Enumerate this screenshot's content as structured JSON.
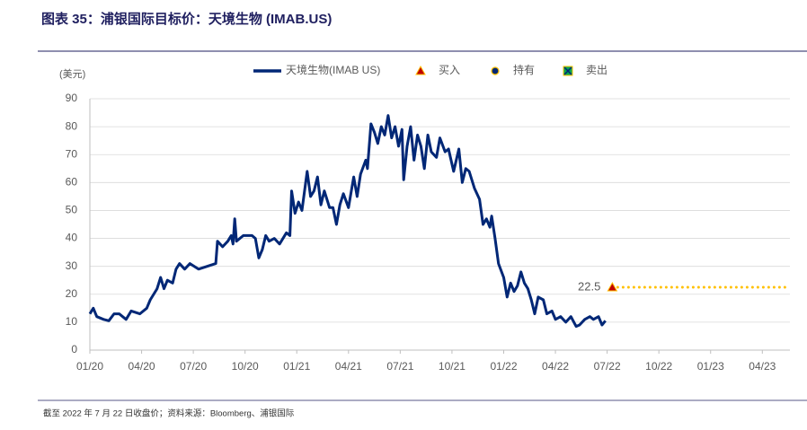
{
  "chart_data": {
    "type": "line",
    "title": "图表 35：浦银国际目标价：天境生物 (IMAB.US)",
    "y_label": "(美元)",
    "footnote": "截至 2022 年 7 月 22 日收盘价；资料来源：Bloomberg、浦银国际",
    "xlim": [
      0,
      40.6
    ],
    "xticks": [
      {
        "value": 0,
        "label": "01/20"
      },
      {
        "value": 3,
        "label": "04/20"
      },
      {
        "value": 6,
        "label": "07/20"
      },
      {
        "value": 9,
        "label": "10/20"
      },
      {
        "value": 12,
        "label": "01/21"
      },
      {
        "value": 15,
        "label": "04/21"
      },
      {
        "value": 18,
        "label": "07/21"
      },
      {
        "value": 21,
        "label": "10/21"
      },
      {
        "value": 24,
        "label": "01/22"
      },
      {
        "value": 27,
        "label": "04/22"
      },
      {
        "value": 30,
        "label": "07/22"
      },
      {
        "value": 33,
        "label": "10/22"
      },
      {
        "value": 36,
        "label": "01/23"
      },
      {
        "value": 39,
        "label": "04/23"
      }
    ],
    "ylim": [
      0,
      90
    ],
    "yticks": [
      0,
      10,
      20,
      30,
      40,
      50,
      60,
      70,
      80,
      90
    ],
    "grid": true,
    "series": [
      {
        "name": "天境生物(IMAB US)",
        "color": "#002776",
        "x": [
          0,
          0.2,
          0.4,
          0.8,
          1.1,
          1.4,
          1.7,
          2.1,
          2.4,
          2.9,
          3.3,
          3.5,
          3.9,
          4.1,
          4.3,
          4.5,
          4.8,
          5.0,
          5.2,
          5.5,
          5.8,
          6.3,
          6.8,
          7.3,
          7.4,
          7.7,
          8.0,
          8.2,
          8.3,
          8.4,
          8.5,
          8.9,
          9.4,
          9.6,
          9.8,
          10.0,
          10.2,
          10.4,
          10.7,
          11.0,
          11.4,
          11.6,
          11.7,
          11.9,
          12.1,
          12.3,
          12.6,
          12.8,
          13.0,
          13.2,
          13.4,
          13.6,
          13.9,
          14.1,
          14.3,
          14.5,
          14.7,
          15.0,
          15.3,
          15.5,
          15.7,
          16.0,
          16.1,
          16.3,
          16.5,
          16.7,
          16.9,
          17.1,
          17.3,
          17.5,
          17.7,
          17.9,
          18.1,
          18.2,
          18.4,
          18.6,
          18.8,
          19.0,
          19.2,
          19.4,
          19.6,
          19.8,
          20.1,
          20.3,
          20.6,
          20.8,
          21.1,
          21.4,
          21.6,
          21.8,
          22.0,
          22.3,
          22.6,
          22.8,
          23.0,
          23.2,
          23.3,
          23.5,
          23.7,
          24.0,
          24.2,
          24.4,
          24.6,
          24.8,
          25.0,
          25.2,
          25.4,
          25.6,
          25.8,
          26.0,
          26.3,
          26.5,
          26.8,
          27.0,
          27.3,
          27.6,
          27.9,
          28.2,
          28.4,
          28.7,
          29.0,
          29.2,
          29.5,
          29.7,
          29.9
        ],
        "values": [
          13,
          15,
          12,
          11,
          10.5,
          13,
          13,
          11,
          14,
          13,
          15,
          18,
          22,
          26,
          22,
          25,
          24,
          29,
          31,
          29,
          31,
          29,
          30,
          31,
          39,
          37,
          39,
          41,
          38,
          47,
          39,
          41,
          41,
          40,
          33,
          36,
          41,
          39,
          40,
          38,
          42,
          41,
          57,
          49,
          53,
          50,
          64,
          55,
          57,
          62,
          52,
          57,
          51,
          51,
          45,
          52,
          56,
          51,
          62,
          55,
          63,
          68,
          65,
          81,
          78,
          74,
          80,
          77,
          84,
          76,
          80,
          73,
          79,
          61,
          73,
          80,
          68,
          77,
          73,
          65,
          77,
          71,
          69,
          76,
          71,
          72,
          64,
          72,
          60,
          65,
          64,
          58,
          54,
          45,
          47,
          44,
          48,
          40,
          31,
          26,
          19,
          24,
          21,
          23,
          28,
          24,
          22,
          18,
          13,
          19,
          18,
          13,
          14,
          11,
          12,
          10,
          12,
          8.5,
          9,
          11,
          12,
          11,
          12,
          9,
          10.5
        ]
      }
    ],
    "rating_legend": [
      {
        "name": "买入",
        "color": "#c00000"
      },
      {
        "name": "持有",
        "color": "#002776"
      },
      {
        "name": "卖出",
        "color": "#00a651"
      }
    ],
    "target": {
      "rating": "买入",
      "x": 30.3,
      "value": 22.5,
      "color": "#ffc000"
    }
  }
}
